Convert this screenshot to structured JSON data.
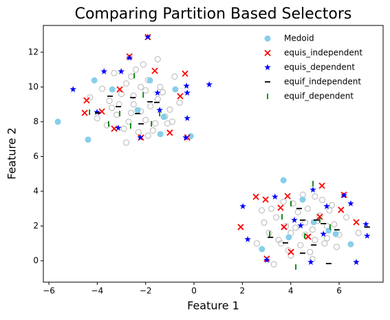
{
  "chart_data": {
    "type": "scatter",
    "title": "Comparing Partition Based Selectors",
    "x_label": "Feature 1",
    "y_label": "Feature 2",
    "xlim": [
      -6.23,
      7.82
    ],
    "ylim": [
      -1.23,
      13.54
    ],
    "xticks": [
      {
        "value": -6,
        "label": "−6"
      },
      {
        "value": -4,
        "label": "−4"
      },
      {
        "value": -2,
        "label": "−2"
      },
      0,
      2,
      4,
      6
    ],
    "yticks": [
      0,
      2,
      4,
      6,
      8,
      10,
      12
    ],
    "legend": "upper right",
    "series": [
      {
        "marker": "open-circle",
        "color": "#c0c0c0",
        "x": [
          -3.5,
          -3.0,
          -2.8,
          -2.5,
          -2.2,
          -2.0,
          -1.8,
          -1.5,
          -1.2,
          -0.9,
          -3.8,
          -4.0,
          -3.2,
          -2.6,
          -2.4,
          -1.9,
          -1.6,
          -1.3,
          -1.0,
          -0.6,
          -3.6,
          -3.3,
          -2.9,
          -2.7,
          -2.3,
          -2.1,
          -1.7,
          -1.4,
          -2.5,
          -2.0,
          -3.1,
          -1.1,
          -4.3,
          -0.8,
          -2.8,
          -2.2,
          -1.9,
          -3.4,
          -2.6,
          -1.5,
          3.4,
          3.8,
          4.0,
          4.3,
          4.6,
          4.9,
          5.2,
          5.5,
          5.8,
          3.2,
          3.6,
          4.1,
          4.4,
          4.7,
          5.0,
          5.3,
          5.6,
          6.0,
          2.9,
          3.3,
          3.9,
          4.2,
          4.5,
          4.8,
          5.1,
          5.4,
          5.7,
          6.3,
          2.6,
          3.1,
          3.7,
          4.0,
          4.6,
          5.0,
          5.9,
          6.8,
          2.8,
          3.5,
          4.9,
          5.5
        ],
        "values": [
          9.2,
          9.6,
          10.2,
          9.0,
          8.6,
          9.8,
          8.9,
          9.3,
          8.3,
          8.0,
          9.9,
          8.2,
          8.4,
          10.6,
          11.0,
          10.4,
          7.9,
          9.7,
          8.7,
          9.1,
          7.8,
          10.8,
          7.6,
          8.0,
          7.4,
          11.3,
          7.5,
          10.0,
          9.5,
          8.1,
          9.0,
          7.9,
          9.4,
          10.6,
          6.8,
          10.0,
          7.2,
          8.8,
          8.5,
          11.6,
          2.5,
          2.0,
          1.6,
          2.8,
          2.2,
          1.8,
          2.6,
          1.3,
          2.1,
          3.0,
          1.0,
          3.3,
          0.9,
          3.0,
          1.2,
          3.5,
          2.9,
          1.5,
          2.2,
          -0.2,
          0.6,
          1.9,
          3.8,
          0.5,
          2.3,
          1.0,
          3.2,
          2.5,
          1.0,
          1.6,
          3.4,
          0.3,
          1.5,
          3.7,
          0.8,
          1.6,
          2.9,
          1.2,
          0.1,
          2.0
        ]
      },
      {
        "name": "Medoid",
        "marker": "circle",
        "color": "#87ceeb",
        "x": [
          -5.63,
          -4.38,
          -4.12,
          -3.38,
          -1.82,
          -1.39,
          -1.25,
          -0.77,
          -0.14,
          -2.33,
          3.7,
          2.81,
          6.48,
          5.57,
          3.92,
          4.49,
          4.95,
          5.86
        ],
        "values": [
          8.0,
          6.97,
          10.38,
          9.86,
          10.38,
          7.29,
          8.28,
          9.86,
          7.17,
          8.67,
          4.63,
          0.67,
          0.95,
          1.74,
          1.35,
          3.52,
          2.22,
          1.54
        ]
      },
      {
        "name": "equis_independent",
        "marker": "x",
        "color": "#ff0000",
        "x": [
          -4.52,
          -4.44,
          -2.67,
          -1.91,
          -1.0,
          -0.37,
          -0.28,
          -0.57,
          -3.07,
          -2.19,
          -3.3,
          -3.81,
          -1.62,
          1.93,
          2.56,
          2.96,
          3.58,
          3.87,
          5.29,
          6.08,
          3.72,
          5.2,
          6.2,
          6.71,
          4.72,
          3.01,
          4.01
        ],
        "values": [
          8.51,
          9.23,
          11.76,
          12.87,
          7.37,
          10.77,
          7.09,
          9.47,
          9.86,
          7.09,
          7.6,
          8.59,
          10.93,
          1.94,
          3.68,
          3.52,
          3.05,
          3.72,
          4.32,
          2.93,
          1.94,
          2.53,
          3.8,
          2.22,
          1.39,
          0.12,
          0.51
        ]
      },
      {
        "name": "equis_dependent",
        "marker": "star",
        "color": "#0000ff",
        "x": [
          -5.0,
          -3.72,
          -3.01,
          -2.67,
          -1.91,
          -1.42,
          -0.31,
          -0.28,
          -0.28,
          -0.34,
          0.63,
          -2.22,
          -3.13,
          -4.01,
          -1.51,
          2.02,
          2.22,
          3.35,
          3.01,
          4.15,
          4.92,
          4.83,
          5.49,
          6.2,
          6.48,
          6.71,
          7.11,
          7.16,
          5.35,
          4.41
        ],
        "values": [
          9.86,
          10.89,
          10.89,
          11.68,
          12.87,
          8.67,
          10.06,
          9.66,
          8.2,
          7.09,
          10.14,
          7.09,
          7.64,
          8.55,
          9.66,
          3.13,
          1.23,
          3.68,
          0.04,
          2.34,
          4.08,
          -0.08,
          3.13,
          3.76,
          3.29,
          -0.08,
          2.1,
          1.43,
          1.54,
          2.02
        ]
      },
      {
        "name": "equif_independent",
        "marker": "hline",
        "color": "#000000",
        "x": [
          -3.98,
          -3.47,
          -3.13,
          -2.53,
          -2.19,
          -1.82,
          -1.54,
          -2.33,
          3.16,
          3.78,
          4.49,
          4.95,
          5.57,
          5.35,
          5.06,
          4.49,
          5.91,
          4.35,
          7.16
        ],
        "values": [
          8.51,
          9.47,
          8.87,
          9.39,
          7.88,
          9.15,
          9.11,
          8.47,
          1.35,
          1.03,
          0.44,
          0.91,
          -0.16,
          2.14,
          2.34,
          2.34,
          1.78,
          3.01,
          1.94
        ]
      },
      {
        "name": "equif_dependent",
        "marker": "vline",
        "color": "#008000",
        "x": [
          -3.53,
          -4.32,
          -2.62,
          -2.47,
          -1.76,
          -1.42,
          -3.07,
          -2.1,
          4.21,
          4.01,
          4.92,
          5.2,
          3.64,
          3.13,
          4.58,
          5.63
        ],
        "values": [
          7.88,
          8.55,
          7.76,
          10.65,
          7.88,
          8.47,
          8.47,
          9.54,
          -0.36,
          3.29,
          4.44,
          2.34,
          2.53,
          1.54,
          1.43,
          1.94
        ]
      }
    ]
  }
}
